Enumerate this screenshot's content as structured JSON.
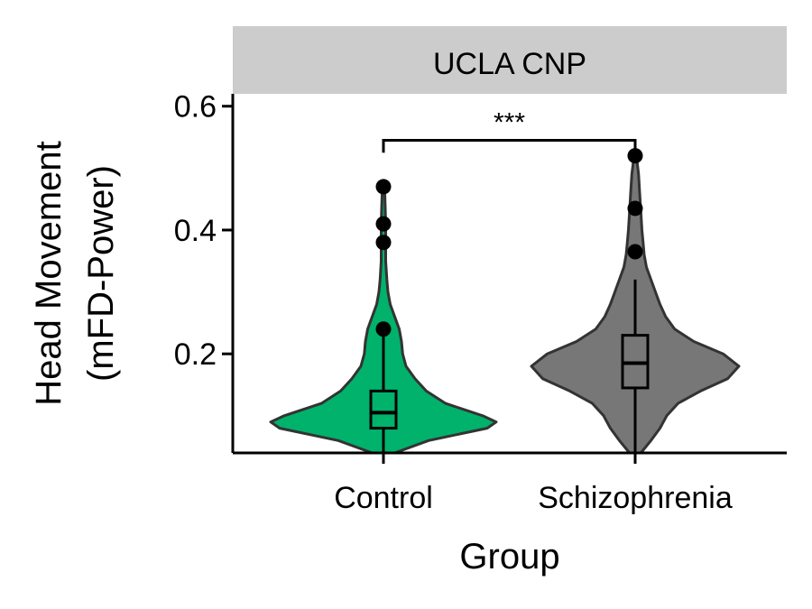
{
  "chart_data": {
    "type": "violin",
    "facet": "UCLA CNP",
    "xlabel": "Group",
    "ylabel_lines": [
      "Head Movement",
      "(mFD-Power)"
    ],
    "categories": [
      "Control",
      "Schizophrenia"
    ],
    "ylim": [
      0.04,
      0.62
    ],
    "yticks": [
      0.2,
      0.4,
      0.6
    ],
    "ytick_labels": [
      "0.2",
      "0.4",
      "0.6"
    ],
    "colors": {
      "Control": "#00b26b",
      "Schizophrenia": "#777777"
    },
    "groups": [
      {
        "name": "Control",
        "box": {
          "whisker_low": 0.04,
          "q1": 0.08,
          "median": 0.105,
          "q3": 0.14,
          "whisker_high": 0.23
        },
        "outliers": [
          0.24,
          0.38,
          0.41,
          0.47
        ],
        "density": [
          [
            0.04,
            0.1
          ],
          [
            0.06,
            0.4
          ],
          [
            0.08,
            0.92
          ],
          [
            0.09,
            1.0
          ],
          [
            0.1,
            0.88
          ],
          [
            0.12,
            0.55
          ],
          [
            0.14,
            0.38
          ],
          [
            0.16,
            0.28
          ],
          [
            0.18,
            0.2
          ],
          [
            0.2,
            0.17
          ],
          [
            0.22,
            0.16
          ],
          [
            0.24,
            0.14
          ],
          [
            0.26,
            0.1
          ],
          [
            0.28,
            0.06
          ],
          [
            0.3,
            0.04
          ],
          [
            0.32,
            0.03
          ],
          [
            0.35,
            0.02
          ],
          [
            0.38,
            0.02
          ],
          [
            0.41,
            0.02
          ],
          [
            0.44,
            0.015
          ],
          [
            0.47,
            0.01
          ]
        ]
      },
      {
        "name": "Schizophrenia",
        "box": {
          "whisker_low": 0.04,
          "q1": 0.145,
          "median": 0.185,
          "q3": 0.23,
          "whisker_high": 0.32
        },
        "outliers": [
          0.365,
          0.435,
          0.52
        ],
        "density": [
          [
            0.04,
            0.05
          ],
          [
            0.06,
            0.14
          ],
          [
            0.08,
            0.22
          ],
          [
            0.1,
            0.28
          ],
          [
            0.12,
            0.38
          ],
          [
            0.14,
            0.58
          ],
          [
            0.16,
            0.82
          ],
          [
            0.18,
            0.92
          ],
          [
            0.2,
            0.78
          ],
          [
            0.22,
            0.52
          ],
          [
            0.24,
            0.35
          ],
          [
            0.26,
            0.27
          ],
          [
            0.28,
            0.22
          ],
          [
            0.3,
            0.18
          ],
          [
            0.32,
            0.14
          ],
          [
            0.34,
            0.1
          ],
          [
            0.36,
            0.08
          ],
          [
            0.38,
            0.07
          ],
          [
            0.4,
            0.06
          ],
          [
            0.43,
            0.05
          ],
          [
            0.46,
            0.04
          ],
          [
            0.49,
            0.03
          ],
          [
            0.52,
            0.01
          ]
        ]
      }
    ],
    "significance": {
      "label": "***",
      "between": [
        "Control",
        "Schizophrenia"
      ],
      "y": 0.545
    }
  }
}
